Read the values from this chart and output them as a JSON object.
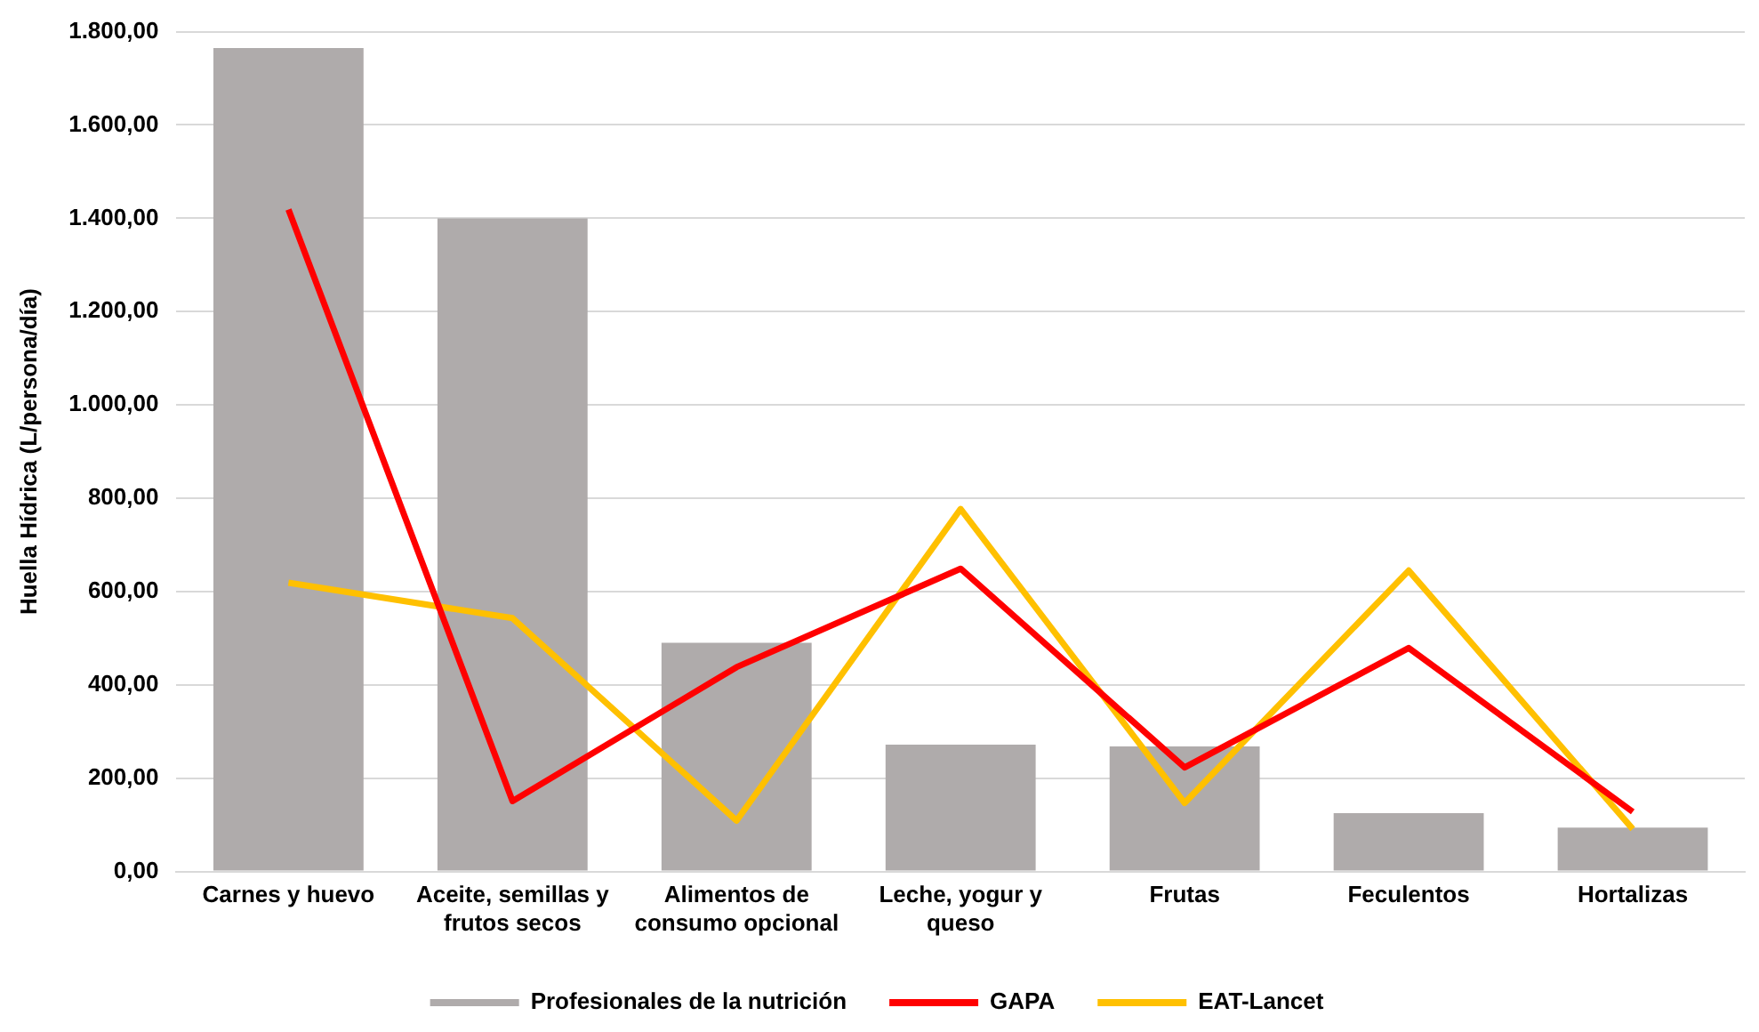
{
  "chart_data": {
    "type": "bar",
    "ylabel": "Huella Hídrica (L/persona/día)",
    "categories": [
      "Carnes y huevo",
      "Aceite, semillas y frutos secos",
      "Alimentos de consumo opcional",
      "Leche, yogur y queso",
      "Frutas",
      "Feculentos",
      "Hortalizas"
    ],
    "series": [
      {
        "name": "Profesionales de la nutrición",
        "color": "#afabab",
        "values": [
          1765,
          1400,
          490,
          272,
          268,
          125,
          94
        ]
      },
      {
        "name": "GAPA",
        "type": "line",
        "color": "#ff0000",
        "values": [
          1419,
          151,
          438,
          649,
          223,
          479,
          128
        ]
      },
      {
        "name": "EAT-Lancet",
        "type": "line",
        "color": "#ffc000",
        "values": [
          619,
          543,
          109,
          777,
          147,
          645,
          91
        ]
      }
    ],
    "ylim": [
      0,
      1800
    ],
    "yticks": [
      {
        "value": 0,
        "label": "0,00"
      },
      {
        "value": 200,
        "label": "200,00"
      },
      {
        "value": 400,
        "label": "400,00"
      },
      {
        "value": 600,
        "label": "600,00"
      },
      {
        "value": 800,
        "label": "800,00"
      },
      {
        "value": 1000,
        "label": "1.000,00"
      },
      {
        "value": 1200,
        "label": "1.200,00"
      },
      {
        "value": 1400,
        "label": "1.400,00"
      },
      {
        "value": 1600,
        "label": "1.600,00"
      },
      {
        "value": 1800,
        "label": "1.800,00"
      }
    ],
    "grid": "y",
    "legend": "bottom",
    "marker": "none",
    "line_style": "solid"
  }
}
